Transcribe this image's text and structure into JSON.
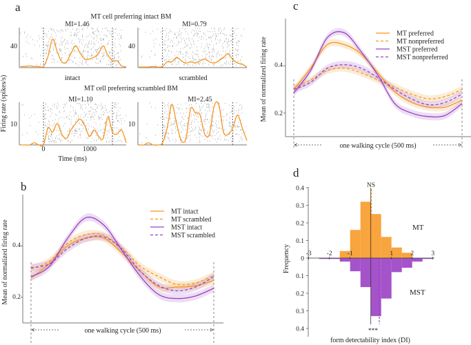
{
  "colors": {
    "mt": "#f7941d",
    "mst": "#9b40c4",
    "mt_band": "#f3c98a",
    "mst_band": "#c9a0dc",
    "raster": "#9a9a9a"
  },
  "chart_data": [
    {
      "panel": "a",
      "type": "line",
      "ylabel": "Firing rate (spikes/s)",
      "xlabel": "Time (ms)",
      "x_ticks": [
        "0",
        "1000"
      ],
      "x": [
        -500,
        -400,
        -300,
        -200,
        -100,
        0,
        100,
        200,
        300,
        400,
        500,
        600,
        700,
        800,
        900,
        1000,
        1100,
        1200,
        1300,
        1400,
        1500,
        1600,
        1700,
        1800
      ],
      "stimulus_window_ms": [
        0,
        1500
      ],
      "rows": [
        {
          "title": "MT cell preferring intact BM",
          "ylim": [
            0,
            70
          ],
          "y_tick": "40",
          "plots": [
            {
              "mi": "MI=1.46",
              "label": "intact",
              "values": [
                2,
                2,
                3,
                2,
                2,
                2,
                20,
                50,
                28,
                10,
                10,
                25,
                38,
                25,
                15,
                15,
                18,
                25,
                38,
                22,
                12,
                12,
                3,
                1
              ]
            },
            {
              "mi": "MI=0.79",
              "label": "scrambled",
              "values": [
                1,
                1,
                1,
                2,
                1,
                2,
                10,
                10,
                18,
                12,
                8,
                10,
                8,
                12,
                15,
                10,
                8,
                12,
                18,
                24,
                14,
                8,
                6,
                1
              ]
            }
          ]
        },
        {
          "title": "MT cell preferring scrambled BM",
          "ylim": [
            0,
            20
          ],
          "y_tick": "10",
          "plots": [
            {
              "mi": "MI=1.10",
              "values": [
                0,
                0,
                0,
                1,
                0,
                0,
                8,
                6,
                10,
                5,
                3,
                7,
                10,
                12,
                9,
                4,
                7,
                4,
                3,
                13,
                6,
                5,
                7,
                1
              ]
            },
            {
              "mi": "MI=2.45",
              "values": [
                0,
                0,
                1,
                0,
                0,
                1,
                8,
                19,
                10,
                2,
                3,
                17,
                15,
                14,
                5,
                5,
                18,
                19,
                6,
                5,
                8,
                14,
                8,
                2
              ]
            }
          ]
        }
      ]
    },
    {
      "panel": "b",
      "type": "line",
      "ylabel": "Mean of normalized firing rate",
      "xlabel": "one walking cycle (500 ms)",
      "ylim": [
        0.1,
        0.6
      ],
      "y_ticks": [
        "0.2",
        "0.4"
      ],
      "legend": "top-right",
      "x": [
        0,
        50,
        100,
        150,
        200,
        250,
        300,
        350,
        400,
        450,
        500
      ],
      "series": [
        {
          "name": "MT intact",
          "area": "MT",
          "dashed": false,
          "values": [
            0.275,
            0.33,
            0.4,
            0.43,
            0.43,
            0.37,
            0.3,
            0.24,
            0.24,
            0.245,
            0.265
          ]
        },
        {
          "name": "MT scrambled",
          "area": "MT",
          "dashed": true,
          "values": [
            0.31,
            0.34,
            0.41,
            0.445,
            0.44,
            0.39,
            0.32,
            0.28,
            0.25,
            0.255,
            0.285
          ]
        },
        {
          "name": "MST intact",
          "area": "MST",
          "dashed": false,
          "values": [
            0.28,
            0.32,
            0.43,
            0.51,
            0.48,
            0.38,
            0.28,
            0.21,
            0.195,
            0.205,
            0.235
          ]
        },
        {
          "name": "MST scrambled",
          "area": "MST",
          "dashed": true,
          "values": [
            0.315,
            0.33,
            0.39,
            0.43,
            0.435,
            0.385,
            0.3,
            0.245,
            0.225,
            0.24,
            0.28
          ]
        }
      ]
    },
    {
      "panel": "c",
      "type": "line",
      "ylabel": "Mean of normalized firing rate",
      "xlabel": "one walking cycle (500 ms)",
      "ylim": [
        0.1,
        0.6
      ],
      "y_ticks": [
        "0.2",
        "0.4"
      ],
      "legend": "top-right",
      "x": [
        0,
        50,
        100,
        150,
        200,
        250,
        300,
        350,
        400,
        450,
        500
      ],
      "series": [
        {
          "name": "MT preferred",
          "area": "MT",
          "dashed": false,
          "values": [
            0.3,
            0.39,
            0.49,
            0.49,
            0.45,
            0.37,
            0.29,
            0.245,
            0.225,
            0.225,
            0.255
          ]
        },
        {
          "name": "MT nonpreferred",
          "area": "MT",
          "dashed": true,
          "values": [
            0.305,
            0.34,
            0.38,
            0.39,
            0.37,
            0.34,
            0.31,
            0.28,
            0.26,
            0.27,
            0.3
          ]
        },
        {
          "name": "MST preferred",
          "area": "MST",
          "dashed": false,
          "values": [
            0.285,
            0.38,
            0.52,
            0.54,
            0.46,
            0.36,
            0.24,
            0.2,
            0.185,
            0.19,
            0.24
          ]
        },
        {
          "name": "MST nonpreferred",
          "area": "MST",
          "dashed": true,
          "values": [
            0.3,
            0.33,
            0.39,
            0.405,
            0.39,
            0.35,
            0.3,
            0.26,
            0.235,
            0.245,
            0.28
          ]
        }
      ]
    },
    {
      "panel": "d",
      "type": "bar",
      "xlabel": "form detectability index (DI)",
      "ylabel": "Frequency",
      "xlim": [
        -3,
        3
      ],
      "x_ticks": [
        "-3",
        "-2",
        "-1",
        "1",
        "2",
        "3"
      ],
      "y_ticks": [
        "0.4",
        "0.3",
        "0.2",
        "0.1",
        "0",
        "0.1",
        "0.2",
        "0.3",
        "0.4"
      ],
      "bin_edges": [
        -2.5,
        -2,
        -1.5,
        -1,
        -0.5,
        0,
        0.5,
        1,
        1.5,
        2,
        2.5,
        3
      ],
      "series": [
        {
          "name": "MT",
          "direction": "up",
          "values": [
            0,
            0,
            0.04,
            0.16,
            0.32,
            0.25,
            0.12,
            0.06,
            0.03,
            0,
            0
          ],
          "mean": 0.03,
          "significance": "NS"
        },
        {
          "name": "MST",
          "direction": "down",
          "values": [
            0.005,
            0.005,
            0.02,
            0.075,
            0.165,
            0.33,
            0.23,
            0.08,
            0.055,
            0.02,
            0.005
          ],
          "mean": 0.41,
          "significance": "***"
        }
      ]
    }
  ],
  "labels": {
    "a": "a",
    "b": "b",
    "c": "c",
    "d": "d"
  }
}
